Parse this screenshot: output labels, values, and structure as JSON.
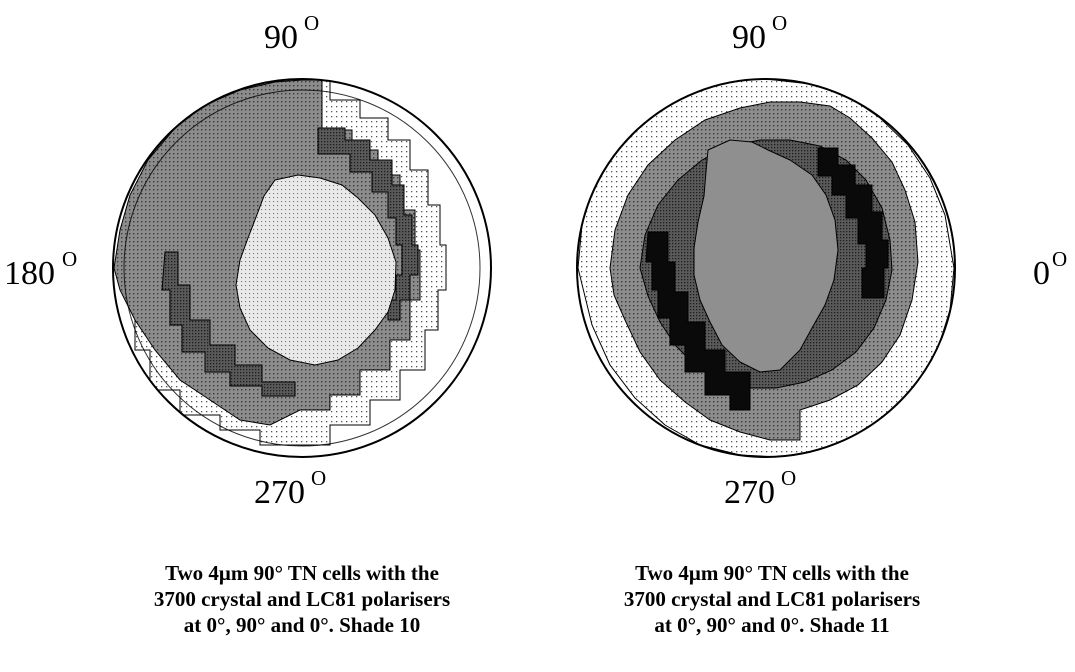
{
  "colors": {
    "light_dots": "#f2f2f2",
    "mid_gray": "#9a9a9a",
    "dark_gray": "#6e6e6e",
    "darker_gray": "#505050",
    "black": "#0a0a0a",
    "outline": "#000000"
  },
  "left_diagram": {
    "angle_top": "90",
    "angle_left": "180",
    "angle_bottom": "270",
    "degree_mark": "O",
    "caption": [
      "Two 4μm 90° TN cells with the",
      "3700 crystal and LC81 polarisers",
      "at 0°, 90° and 0°. Shade 10"
    ]
  },
  "right_diagram": {
    "angle_top": "90",
    "angle_right": "0",
    "angle_bottom": "270",
    "degree_mark": "O",
    "caption": [
      "Two 4μm 90° TN cells with the",
      "3700 crystal and LC81 polarisers",
      "at 0°, 90° and 0°. Shade 11"
    ]
  }
}
